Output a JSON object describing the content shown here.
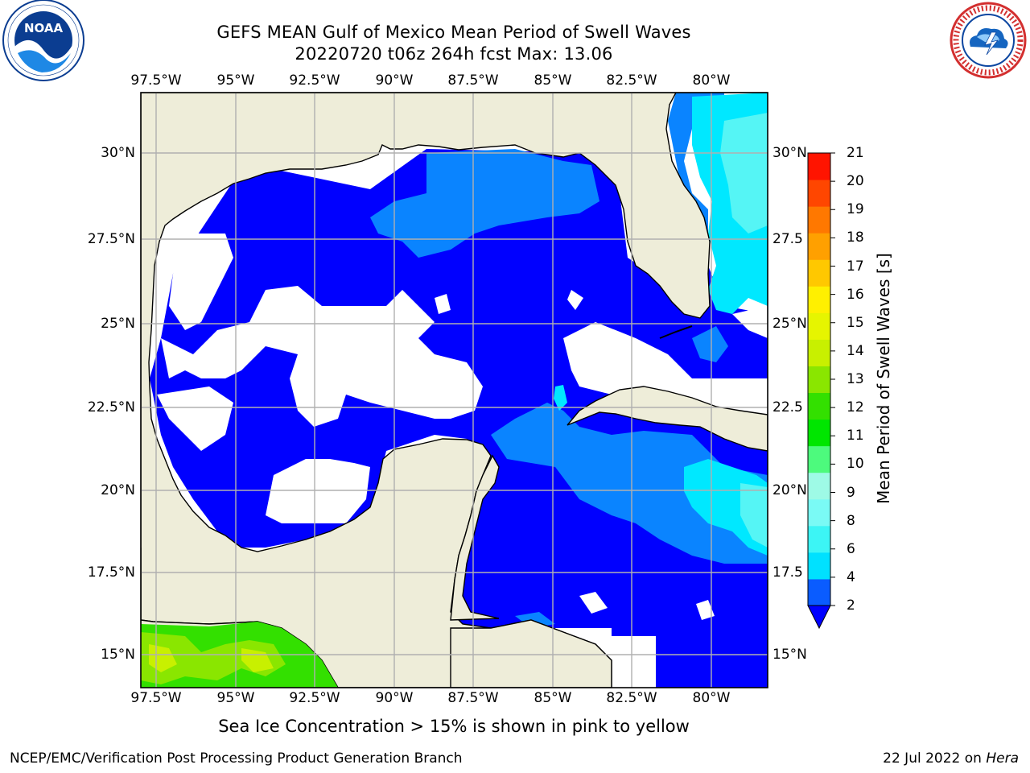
{
  "title": {
    "line1": "GEFS MEAN Gulf of Mexico Mean Period of Swell Waves",
    "line2": "20220720 t06z 264h fcst   Max: 13.06"
  },
  "logos": {
    "left": {
      "name": "noaa-logo",
      "text": "NOAA",
      "ring_text": "NATIONAL OCEANIC AND ATMOSPHERIC ADMINISTRATION · U.S. DEPARTMENT OF COMMERCE"
    },
    "right": {
      "name": "nws-logo",
      "ring_text": "NATIONAL WEATHER SERVICE"
    }
  },
  "map": {
    "lon_ticks": [
      "97.5°W",
      "95°W",
      "92.5°W",
      "90°W",
      "87.5°W",
      "85°W",
      "82.5°W",
      "80°W"
    ],
    "lat_ticks": [
      "30°N",
      "27.5°N",
      "25°N",
      "22.5°N",
      "20°N",
      "17.5°N",
      "15°N"
    ],
    "lat_ticks_right": [
      "30°N",
      "27.5",
      "25°N",
      "22.5",
      "20°N",
      "17.5",
      "15°N"
    ],
    "land_color": "#eeedd9",
    "ocean_missing_color": "#ffffff",
    "gridlines": true
  },
  "colorbar": {
    "title": "Mean Period of Swell Waves [s]",
    "ticks": [
      "2",
      "4",
      "6",
      "8",
      "9",
      "10",
      "11",
      "12",
      "13",
      "14",
      "15",
      "16",
      "17",
      "18",
      "19",
      "20",
      "21"
    ],
    "colors": [
      "#0a5cff",
      "#00e1ff",
      "#3cf5f5",
      "#7afaf5",
      "#9efae6",
      "#4dfa7d",
      "#00e600",
      "#33e000",
      "#8ae600",
      "#c8f000",
      "#e6f500",
      "#fff000",
      "#ffc800",
      "#ffa000",
      "#ff7800",
      "#ff4600",
      "#ff1400"
    ],
    "under_color": "#0000ff"
  },
  "footnote": "Sea Ice Concentration > 15% is shown in pink to yellow",
  "footer": {
    "branch": "NCEP/EMC/Verification Post Processing Product Generation Branch",
    "date_prefix": "22 Jul 2022 on ",
    "date_machine": "Hera"
  }
}
